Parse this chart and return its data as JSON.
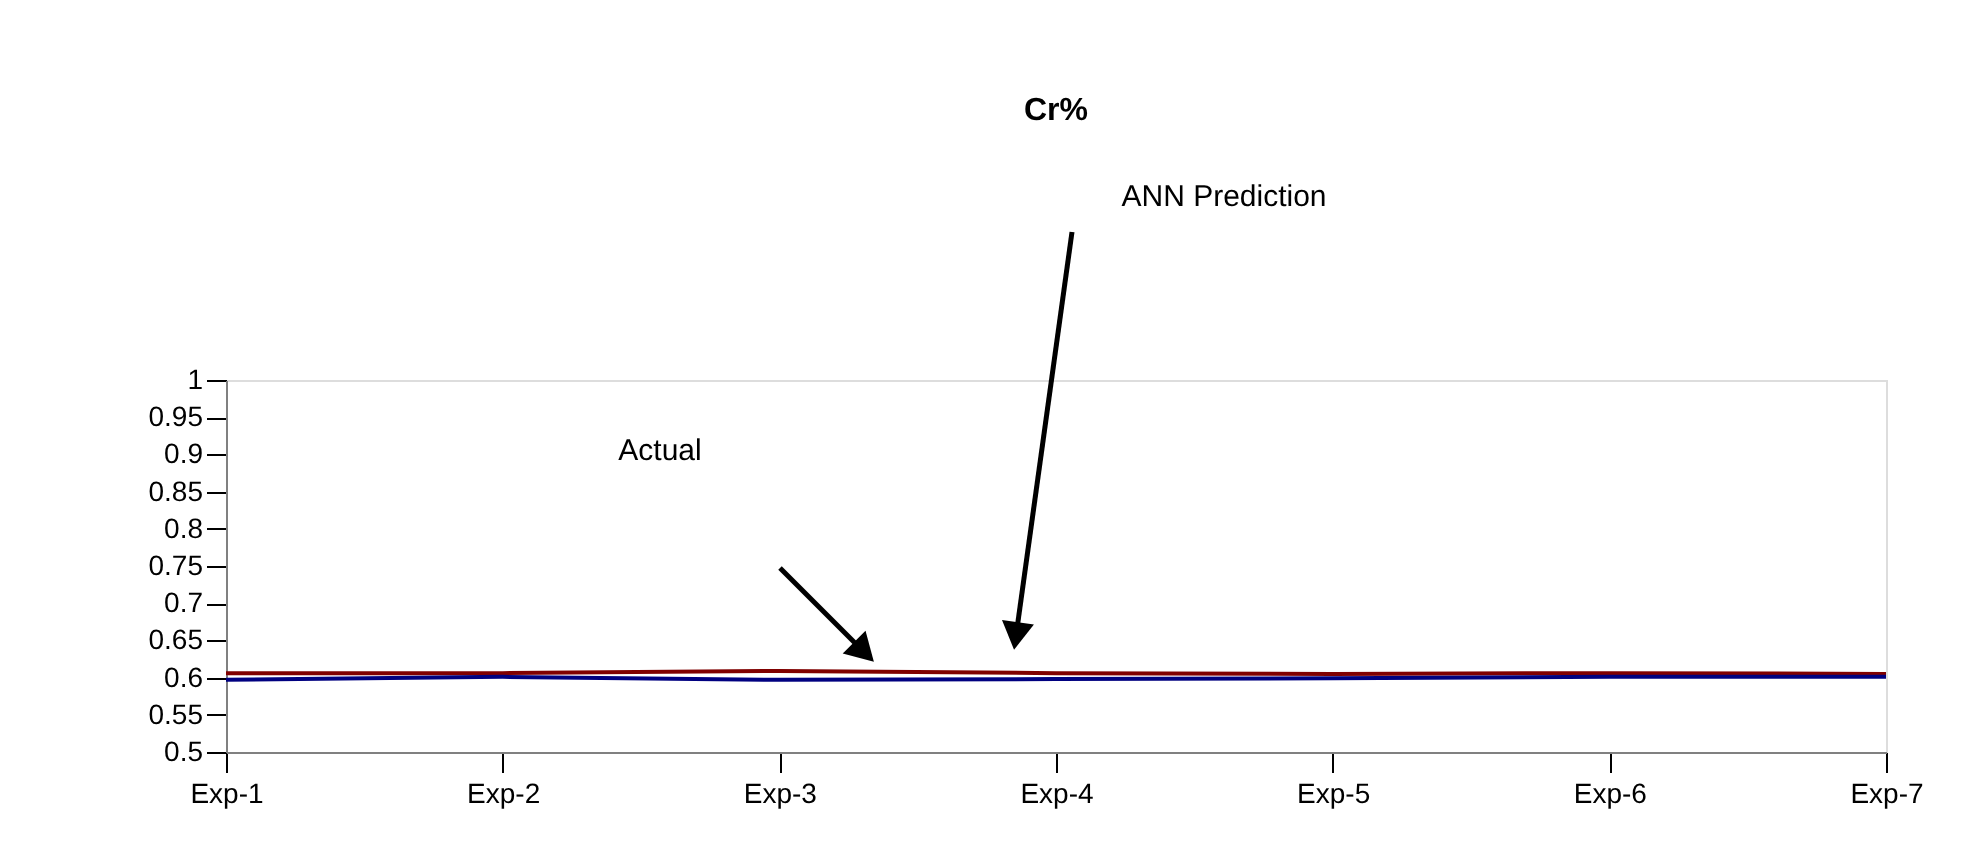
{
  "chart_data": {
    "type": "line",
    "title": "Cr%",
    "categories": [
      "Exp-1",
      "Exp-2",
      "Exp-3",
      "Exp-4",
      "Exp-5",
      "Exp-6",
      "Exp-7"
    ],
    "series": [
      {
        "color": "#800000",
        "values": [
          0.606,
          0.606,
          0.609,
          0.606,
          0.605,
          0.606,
          0.605
        ]
      },
      {
        "color": "#000080",
        "values": [
          0.597,
          0.601,
          0.597,
          0.598,
          0.599,
          0.601,
          0.601
        ]
      }
    ],
    "ylim": [
      0.5,
      1
    ],
    "yticks": [
      0.5,
      0.55,
      0.6,
      0.65,
      0.7,
      0.75,
      0.8,
      0.85,
      0.9,
      0.95,
      1
    ],
    "annotations": [
      "ANN Prediction",
      "Actual"
    ],
    "grid": false,
    "legend": false,
    "marker": "none",
    "line_style": "solid"
  }
}
